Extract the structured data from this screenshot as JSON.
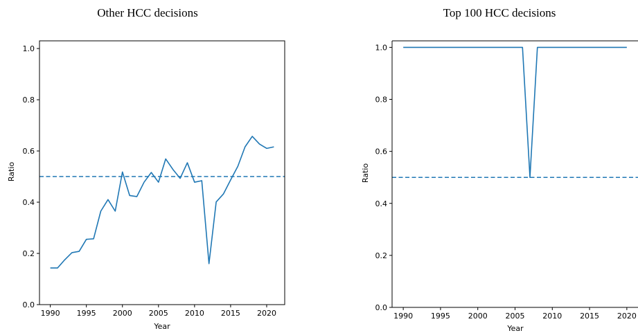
{
  "chart_data": [
    {
      "type": "line",
      "title": "Other HCC decisions",
      "xlabel": "Year",
      "ylabel": "Ratio",
      "xlim": [
        1988.5,
        2022.5
      ],
      "ylim": [
        0.0,
        1.03
      ],
      "xticks": [
        1990,
        1995,
        2000,
        2005,
        2010,
        2015,
        2020
      ],
      "yticks": [
        0.0,
        0.2,
        0.4,
        0.6,
        0.8,
        1.0
      ],
      "xtick_labels": [
        "1990",
        "1995",
        "2000",
        "2005",
        "2010",
        "2015",
        "2020"
      ],
      "ytick_labels": [
        "0.0",
        "0.2",
        "0.4",
        "0.6",
        "0.8",
        "1.0"
      ],
      "reference_line": 0.5,
      "series": [
        {
          "color": "#1f77b4",
          "x": [
            1990,
            1991,
            1992,
            1993,
            1994,
            1995,
            1996,
            1997,
            1998,
            1999,
            2000,
            2001,
            2002,
            2003,
            2004,
            2005,
            2006,
            2007,
            2008,
            2009,
            2010,
            2011,
            2012,
            2013,
            2014,
            2015,
            2016,
            2017,
            2018,
            2019,
            2020,
            2021
          ],
          "values": [
            0.143,
            0.143,
            0.175,
            0.203,
            0.208,
            0.255,
            0.257,
            0.365,
            0.41,
            0.365,
            0.518,
            0.426,
            0.422,
            0.478,
            0.516,
            0.478,
            0.569,
            0.528,
            0.493,
            0.554,
            0.478,
            0.484,
            0.16,
            0.401,
            0.432,
            0.487,
            0.54,
            0.616,
            0.657,
            0.627,
            0.61,
            0.616
          ]
        }
      ]
    },
    {
      "type": "line",
      "title": "Top 100 HCC decisions",
      "xlabel": "Year",
      "ylabel": "Ratio",
      "xlim": [
        1988.5,
        2021.5
      ],
      "ylim": [
        0.0,
        1.025
      ],
      "xticks": [
        1990,
        1995,
        2000,
        2005,
        2010,
        2015,
        2020
      ],
      "yticks": [
        0.0,
        0.2,
        0.4,
        0.6,
        0.8,
        1.0
      ],
      "xtick_labels": [
        "1990",
        "1995",
        "2000",
        "2005",
        "2010",
        "2015",
        "2020"
      ],
      "ytick_labels": [
        "0.0",
        "0.2",
        "0.4",
        "0.6",
        "0.8",
        "1.0"
      ],
      "reference_line": 0.5,
      "series": [
        {
          "color": "#1f77b4",
          "x": [
            1990,
            1991,
            1992,
            1993,
            1994,
            1995,
            1996,
            1997,
            1998,
            1999,
            2000,
            2001,
            2002,
            2003,
            2004,
            2005,
            2006,
            2007,
            2008,
            2009,
            2010,
            2011,
            2012,
            2013,
            2014,
            2015,
            2016,
            2017,
            2018,
            2019,
            2020
          ],
          "values": [
            1,
            1,
            1,
            1,
            1,
            1,
            1,
            1,
            1,
            1,
            1,
            1,
            1,
            1,
            1,
            1,
            1,
            0.5,
            1,
            1,
            1,
            1,
            1,
            1,
            1,
            1,
            1,
            1,
            1,
            1,
            1
          ]
        }
      ]
    }
  ]
}
